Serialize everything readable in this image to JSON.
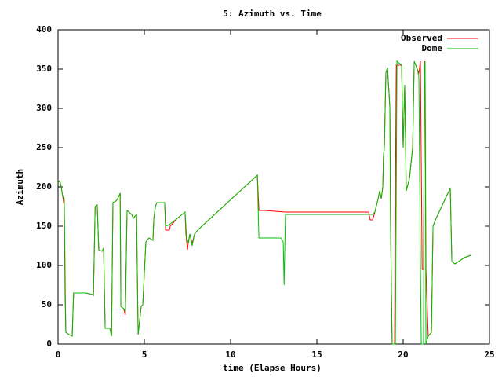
{
  "chart_data": {
    "type": "line",
    "title": "5: Azimuth vs. Time",
    "xlabel": "time (Elapse Hours)",
    "ylabel": "Azimuth",
    "xlim": [
      0,
      25
    ],
    "xticks": [
      0,
      5,
      10,
      15,
      20,
      25
    ],
    "ylim": [
      0,
      400
    ],
    "yticks": [
      0,
      50,
      100,
      150,
      200,
      250,
      300,
      350,
      400
    ],
    "grid": false,
    "legend": "top-right",
    "series": [
      {
        "name": "Observed",
        "color": "#ff0000",
        "x": [
          0,
          0.1,
          0.18,
          0.27,
          0.36,
          0.41,
          0.45,
          0.64,
          0.82,
          0.9,
          1.6,
          2.0,
          2.05,
          2.15,
          2.27,
          2.36,
          2.55,
          2.64,
          2.73,
          3.0,
          3.1,
          3.18,
          3.36,
          3.45,
          3.6,
          3.64,
          3.8,
          3.9,
          4.0,
          4.27,
          4.36,
          4.55,
          4.64,
          4.82,
          4.91,
          5.09,
          5.27,
          5.5,
          5.55,
          5.64,
          5.73,
          6.18,
          6.23,
          6.45,
          6.5,
          6.91,
          7.36,
          7.41,
          7.5,
          7.55,
          7.64,
          7.77,
          7.91,
          8.09,
          11.55,
          11.64,
          12.0,
          13.18,
          18.0,
          18.09,
          18.23,
          18.36,
          18.55,
          18.64,
          18.73,
          18.82,
          18.86,
          18.91,
          19.0,
          19.09,
          19.18,
          19.23,
          19.27,
          19.36,
          19.5,
          19.6,
          19.91,
          20.0,
          20.09,
          20.18,
          20.36,
          20.55,
          20.64,
          20.82,
          20.91,
          21.0,
          21.1,
          21.18,
          21.23,
          21.27,
          21.32,
          21.45,
          21.64,
          21.73,
          21.91,
          22.55,
          22.73,
          22.82,
          23.0,
          23.55,
          23.91
        ],
        "values": [
          205,
          208,
          200,
          188,
          175,
          60,
          15,
          12,
          10,
          65,
          65,
          63,
          62,
          175,
          177,
          120,
          118,
          122,
          20,
          20,
          10,
          180,
          182,
          185,
          192,
          48,
          45,
          37,
          170,
          165,
          160,
          165,
          12,
          48,
          50,
          130,
          135,
          132,
          160,
          175,
          180,
          180,
          145,
          145,
          150,
          160,
          168,
          140,
          120,
          130,
          140,
          128,
          140,
          145,
          215,
          170,
          170,
          168,
          168,
          158,
          158,
          168,
          185,
          195,
          185,
          200,
          240,
          250,
          345,
          352,
          320,
          300,
          150,
          0,
          0,
          355,
          355,
          250,
          330,
          195,
          210,
          250,
          360,
          350,
          345,
          360,
          95,
          95,
          360,
          355,
          95,
          10,
          15,
          150,
          160,
          190,
          198,
          105,
          102,
          110,
          113
        ]
      },
      {
        "name": "Dome",
        "color": "#00c000",
        "x": [
          0,
          0.1,
          0.18,
          0.27,
          0.36,
          0.45,
          0.64,
          0.82,
          0.9,
          1.6,
          2.0,
          2.05,
          2.15,
          2.27,
          2.36,
          2.55,
          2.64,
          2.73,
          3.0,
          3.1,
          3.18,
          3.36,
          3.45,
          3.6,
          3.64,
          3.8,
          3.9,
          4.0,
          4.27,
          4.36,
          4.55,
          4.64,
          4.82,
          4.91,
          5.09,
          5.27,
          5.5,
          5.55,
          5.64,
          5.73,
          6.18,
          6.23,
          6.45,
          6.91,
          7.36,
          7.41,
          7.45,
          7.55,
          7.64,
          7.77,
          7.91,
          8.09,
          11.55,
          11.64,
          12.91,
          13.05,
          13.1,
          13.18,
          18.23,
          18.36,
          18.55,
          18.64,
          18.73,
          18.82,
          18.86,
          18.91,
          19.0,
          19.09,
          19.18,
          19.23,
          19.27,
          19.36,
          19.55,
          19.64,
          19.91,
          20.0,
          20.09,
          20.18,
          20.36,
          20.55,
          20.64,
          20.82,
          20.91,
          21.0,
          21.05,
          21.18,
          21.23,
          21.27,
          21.32,
          21.45,
          21.64,
          21.73,
          21.91,
          22.55,
          22.73,
          22.82,
          23.0,
          23.55,
          23.91
        ],
        "values": [
          205,
          208,
          200,
          188,
          185,
          15,
          12,
          10,
          65,
          65,
          63,
          62,
          175,
          177,
          120,
          118,
          122,
          20,
          20,
          10,
          180,
          182,
          185,
          192,
          48,
          45,
          42,
          170,
          165,
          160,
          165,
          12,
          48,
          50,
          130,
          135,
          132,
          160,
          175,
          180,
          180,
          150,
          152,
          160,
          168,
          150,
          135,
          128,
          140,
          125,
          140,
          145,
          215,
          135,
          135,
          130,
          75,
          165,
          165,
          168,
          185,
          195,
          185,
          200,
          240,
          250,
          345,
          352,
          320,
          300,
          150,
          0,
          0,
          360,
          355,
          250,
          330,
          195,
          210,
          250,
          360,
          350,
          340,
          100,
          0,
          0,
          355,
          360,
          0,
          10,
          15,
          150,
          160,
          190,
          198,
          105,
          102,
          110,
          113
        ]
      }
    ]
  }
}
